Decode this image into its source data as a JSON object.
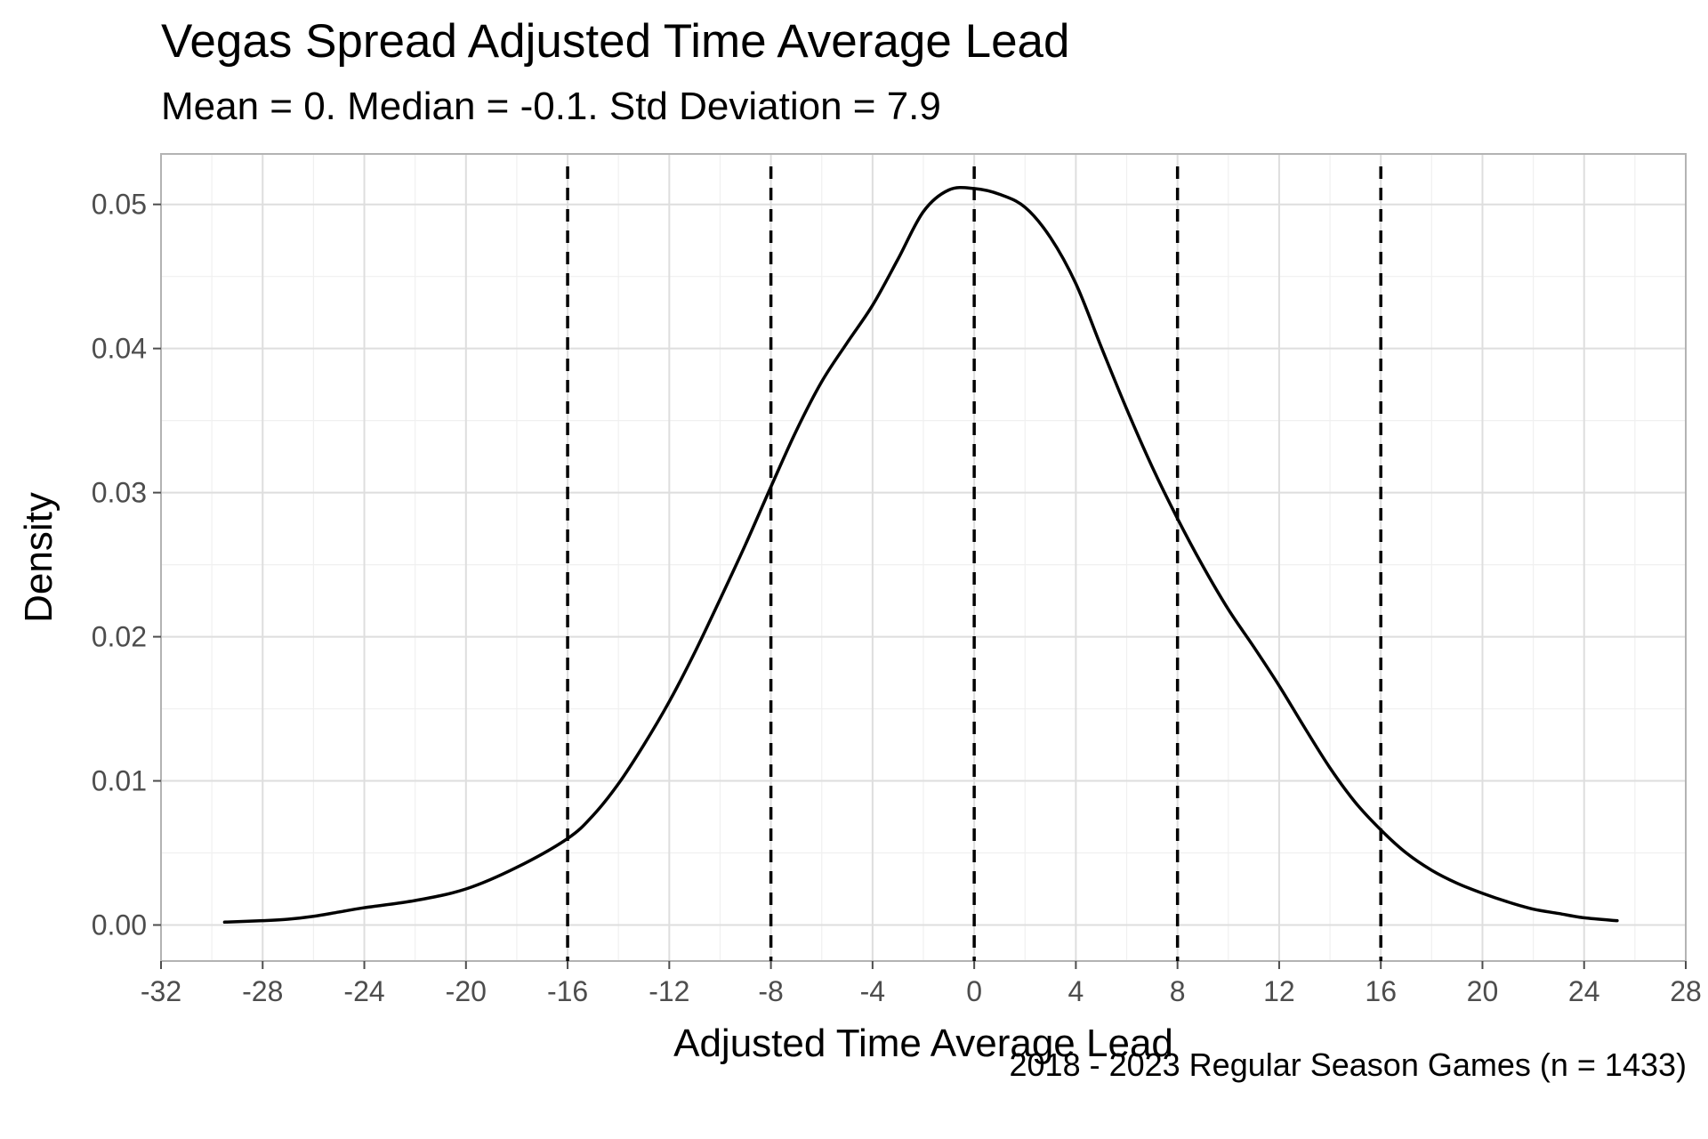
{
  "chart_data": {
    "type": "line",
    "title": "Vegas Spread Adjusted Time Average Lead",
    "subtitle": "Mean = 0. Median = -0.1. Std Deviation = 7.9",
    "caption": "2018 - 2023 Regular Season Games (n = 1433)",
    "xlabel": "Adjusted Time Average Lead",
    "ylabel": "Density",
    "xlim": [
      -32,
      28
    ],
    "ylim": [
      -0.0025,
      0.0535
    ],
    "x_ticks": [
      "-32",
      "-28",
      "-24",
      "-20",
      "-16",
      "-12",
      "-8",
      "-4",
      "0",
      "4",
      "8",
      "12",
      "16",
      "20",
      "24",
      "28"
    ],
    "y_ticks": [
      "0.00",
      "0.01",
      "0.02",
      "0.03",
      "0.04",
      "0.05"
    ],
    "grid": true,
    "reference_lines": [
      {
        "x": -16,
        "style": "dashed"
      },
      {
        "x": -8,
        "style": "dashed"
      },
      {
        "x": 0,
        "style": "dashed"
      },
      {
        "x": 8,
        "style": "dashed"
      },
      {
        "x": 16,
        "style": "dashed"
      }
    ],
    "line_color": "#000000",
    "series": [
      {
        "x": [
          -29.5,
          -28,
          -27,
          -26,
          -25,
          -24,
          -22,
          -20,
          -18,
          -16,
          -15,
          -14,
          -13,
          -12,
          -11,
          -10,
          -9,
          -8,
          -7,
          -6,
          -5,
          -4,
          -3,
          -2,
          -1,
          0,
          1,
          2,
          3,
          4,
          5,
          6,
          7,
          8,
          9,
          10,
          11,
          12,
          13,
          14,
          15,
          16,
          17,
          18,
          19,
          20,
          21,
          22,
          23,
          24,
          25.3
        ],
        "y": [
          0.0002,
          0.0003,
          0.0004,
          0.0006,
          0.0009,
          0.0012,
          0.0017,
          0.0025,
          0.004,
          0.006,
          0.0076,
          0.0098,
          0.0125,
          0.0155,
          0.0189,
          0.0226,
          0.0264,
          0.0304,
          0.0343,
          0.0377,
          0.0404,
          0.043,
          0.0462,
          0.0495,
          0.051,
          0.0511,
          0.0507,
          0.0498,
          0.0477,
          0.0445,
          0.0401,
          0.0358,
          0.0318,
          0.0282,
          0.0249,
          0.0219,
          0.0193,
          0.0166,
          0.0137,
          0.0109,
          0.0085,
          0.0066,
          0.005,
          0.0038,
          0.0029,
          0.0022,
          0.0016,
          0.0011,
          0.0008,
          0.0005,
          0.0003
        ]
      }
    ]
  }
}
